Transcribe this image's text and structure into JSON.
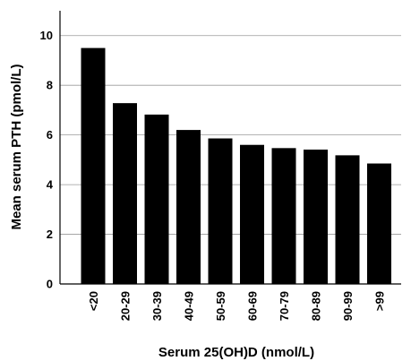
{
  "chart_data": {
    "type": "bar",
    "xlabel": "Serum 25(OH)D (nmol/L)",
    "ylabel": "Mean serum PTH (pmol/L)",
    "categories": [
      "<20",
      "20-29",
      "30-39",
      "40-49",
      "50-59",
      "60-69",
      "70-79",
      "80-89",
      "90-99",
      ">99"
    ],
    "values": [
      9.5,
      7.28,
      6.82,
      6.2,
      5.86,
      5.6,
      5.47,
      5.41,
      5.18,
      4.85
    ],
    "ylim": [
      0,
      11
    ],
    "yticks": [
      "0",
      "2",
      "4",
      "6",
      "8",
      "10"
    ],
    "grid": true,
    "colors": {
      "bar": "#000000",
      "grid": "#9a9a9a"
    }
  }
}
